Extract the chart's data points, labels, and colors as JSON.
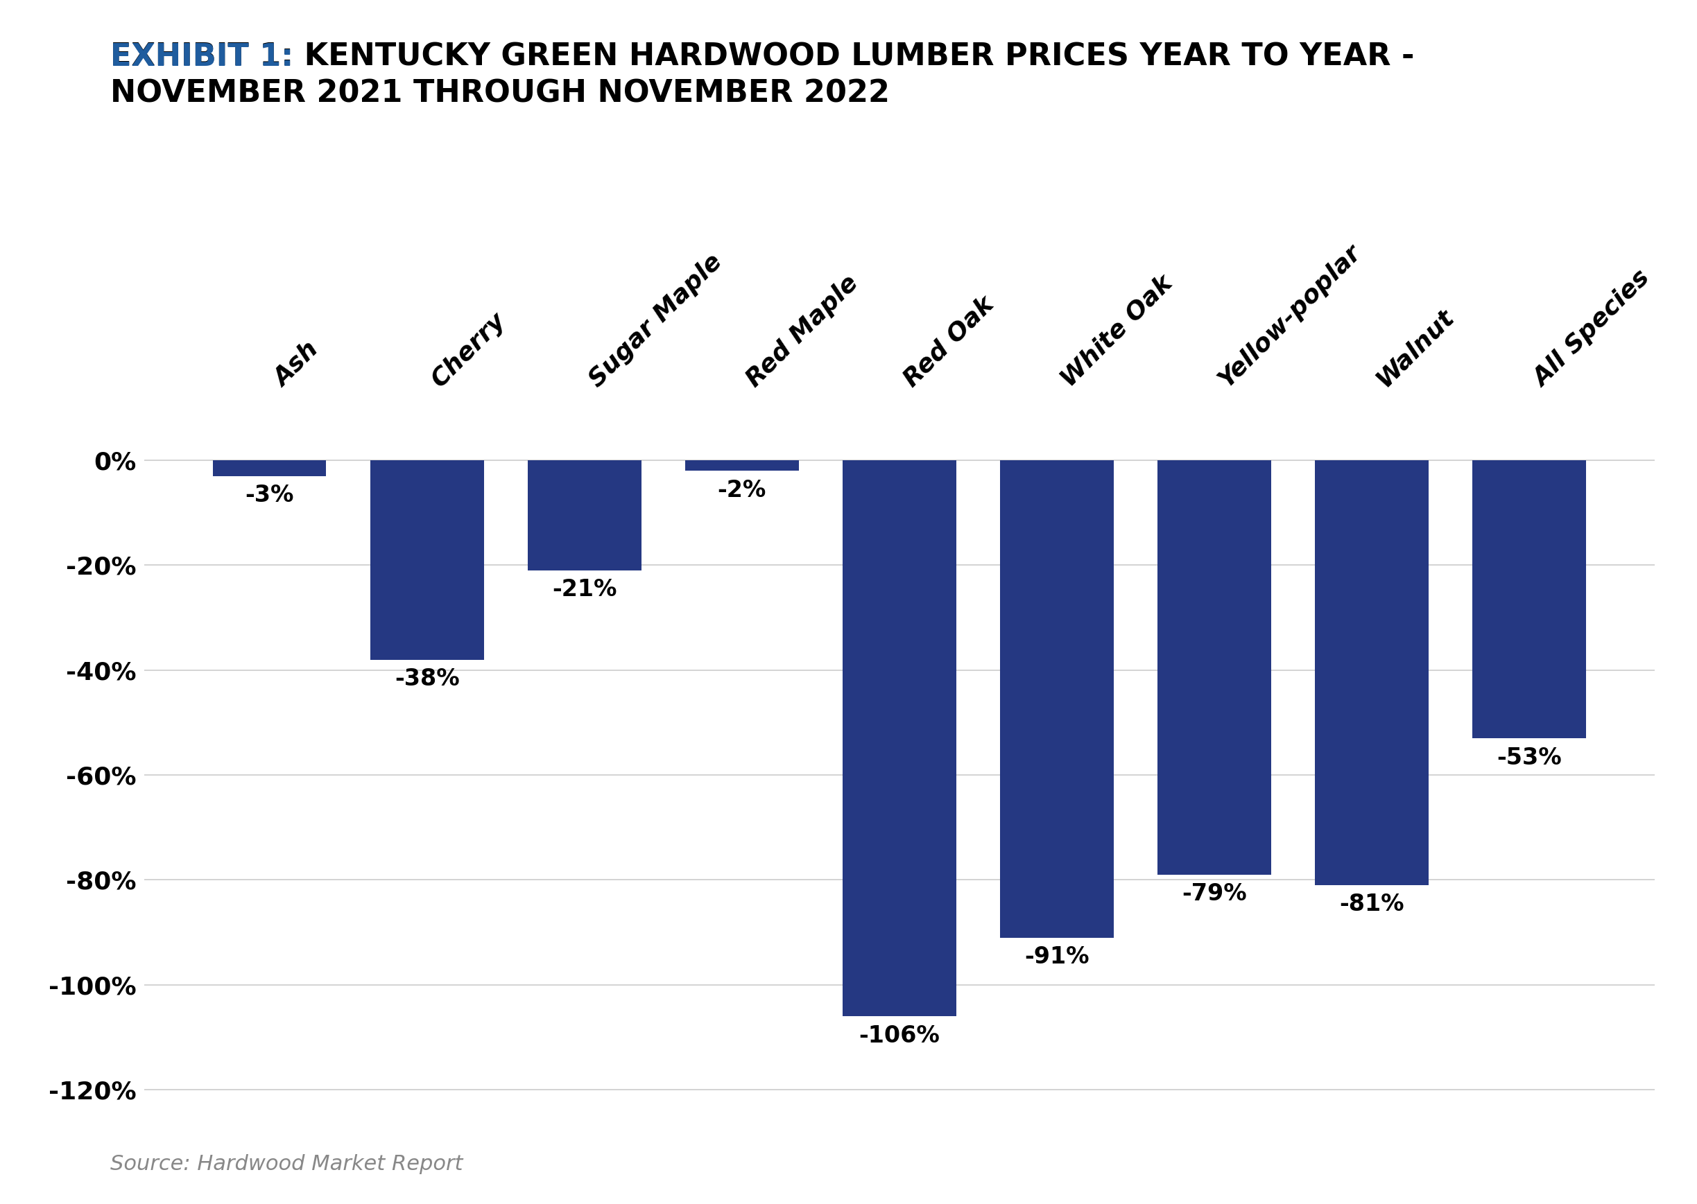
{
  "categories": [
    "Ash",
    "Cherry",
    "Sugar Maple",
    "Red Maple",
    "Red Oak",
    "White Oak",
    "Yellow-poplar",
    "Walnut",
    "All Species"
  ],
  "values": [
    -3,
    -38,
    -21,
    -2,
    -106,
    -91,
    -79,
    -81,
    -53
  ],
  "bar_color": "#253882",
  "background_color": "#ffffff",
  "exhibit_prefix": "EXHIBIT 1: ",
  "title_main": "KENTUCKY GREEN HARDWOOD LUMBER PRICES YEAR TO YEAR -\nNOVEMBER 2021 THROUGH NOVEMBER 2022",
  "exhibit_color": "#1F5C9E",
  "title_color": "#000000",
  "ylim": [
    -128,
    12
  ],
  "yticks": [
    0,
    -20,
    -40,
    -60,
    -80,
    -100,
    -120
  ],
  "ytick_labels": [
    "0%",
    "-20%",
    "-40%",
    "-60%",
    "-80%",
    "-100%",
    "-120%"
  ],
  "source_text": "Source: Hardwood Market Report",
  "title_fontsize": 32,
  "exhibit_fontsize": 32,
  "xtick_label_fontsize": 26,
  "ytick_label_fontsize": 26,
  "source_fontsize": 22,
  "bar_label_fontsize": 24,
  "bar_width": 0.72
}
